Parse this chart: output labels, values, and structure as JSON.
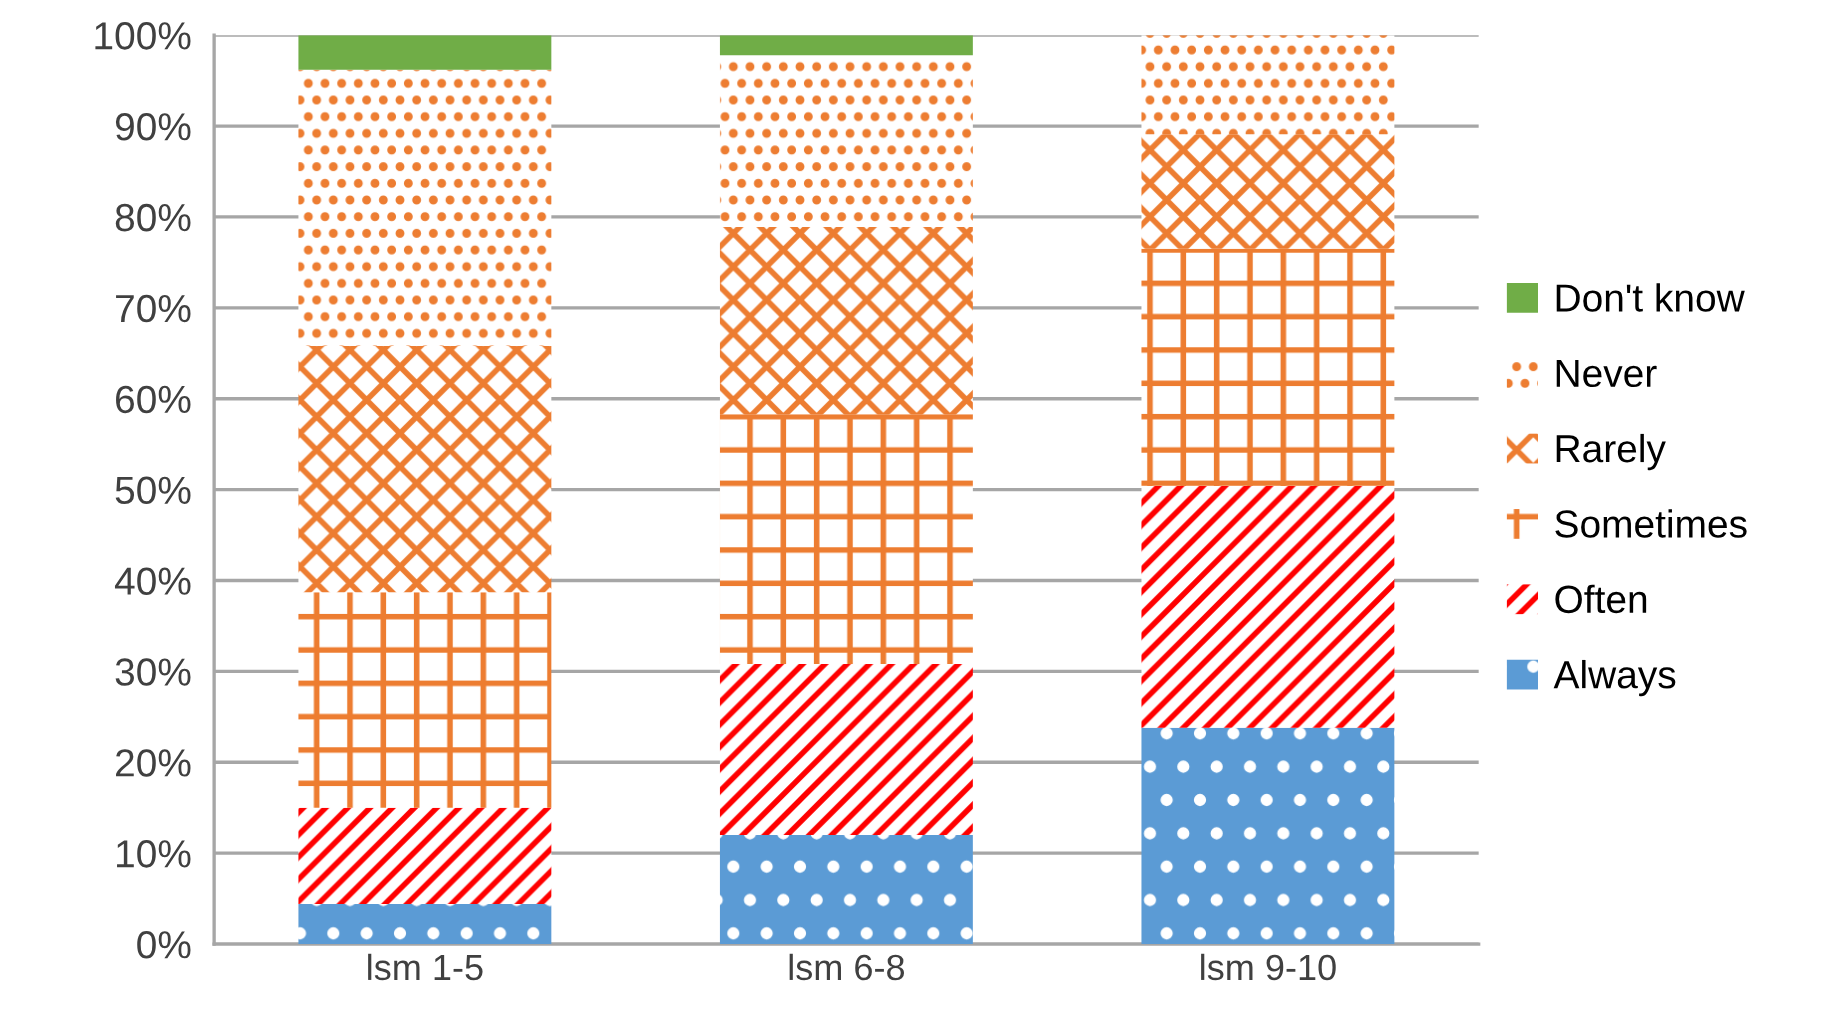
{
  "chart_data": {
    "type": "bar",
    "stacked": true,
    "categories": [
      "lsm 1-5",
      "lsm 6-8",
      "lsm 9-10"
    ],
    "series": [
      {
        "name": "Always",
        "color": "#5b9bd5",
        "values": [
          4.4,
          12.0,
          23.8
        ]
      },
      {
        "name": "Often",
        "color": "#ff0000",
        "values": [
          10.6,
          18.8,
          26.6
        ]
      },
      {
        "name": "Sometimes",
        "color": "#ed7d31",
        "values": [
          23.7,
          27.5,
          26.1
        ]
      },
      {
        "name": "Rarely",
        "color": "#ed7d31",
        "values": [
          27.1,
          20.6,
          12.6
        ]
      },
      {
        "name": "Never",
        "color": "#ed7d31",
        "values": [
          30.4,
          18.9,
          10.9
        ]
      },
      {
        "name": "Don't know",
        "color": "#70ad47",
        "values": [
          3.8,
          2.2,
          0
        ]
      }
    ],
    "ylim": [
      0,
      100
    ],
    "yticks": [
      {
        "value": 0,
        "label": "0%"
      },
      {
        "value": 10,
        "label": "10%"
      },
      {
        "value": 20,
        "label": "20%"
      },
      {
        "value": 30,
        "label": "30%"
      },
      {
        "value": 40,
        "label": "40%"
      },
      {
        "value": 50,
        "label": "50%"
      },
      {
        "value": 60,
        "label": "60%"
      },
      {
        "value": 70,
        "label": "70%"
      },
      {
        "value": 80,
        "label": "80%"
      },
      {
        "value": 90,
        "label": "90%"
      },
      {
        "value": 100,
        "label": "100%"
      }
    ],
    "grid": "y",
    "legend": "right"
  }
}
